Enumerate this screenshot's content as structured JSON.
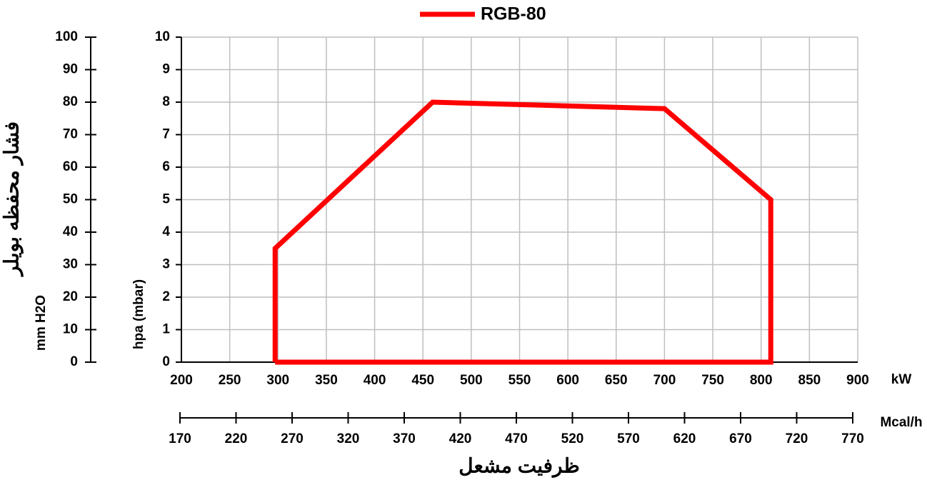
{
  "chart_data": {
    "type": "line",
    "x": [
      297,
      297,
      460,
      700,
      810,
      810,
      297
    ],
    "series": [
      {
        "name": "RGB-80",
        "color": "#ff0000",
        "values": [
          0,
          3.5,
          8,
          7.8,
          5,
          0,
          0
        ]
      }
    ],
    "xlim": [
      200,
      900
    ],
    "xticks": [
      200,
      250,
      300,
      350,
      400,
      450,
      500,
      550,
      600,
      650,
      700,
      750,
      800,
      850,
      900
    ],
    "ylim": [
      0,
      10
    ],
    "yticks": [
      0,
      1,
      2,
      3,
      4,
      5,
      6,
      7,
      8,
      9,
      10
    ],
    "y2lim": [
      0,
      100
    ],
    "y2ticks": [
      0,
      10,
      20,
      30,
      40,
      50,
      60,
      70,
      80,
      90,
      100
    ],
    "x2lim": [
      170,
      770
    ],
    "x2ticks": [
      170,
      220,
      270,
      320,
      370,
      420,
      470,
      520,
      570,
      620,
      670,
      720,
      770
    ],
    "xlabel": "kW",
    "x2label": "Mcal/h",
    "ylabel": "hpa (mbar)",
    "y2label": "mm H2O",
    "y2title": "فشار محفظه بویلر",
    "xtitle": "ظرفیت مشعل",
    "grid": true
  }
}
